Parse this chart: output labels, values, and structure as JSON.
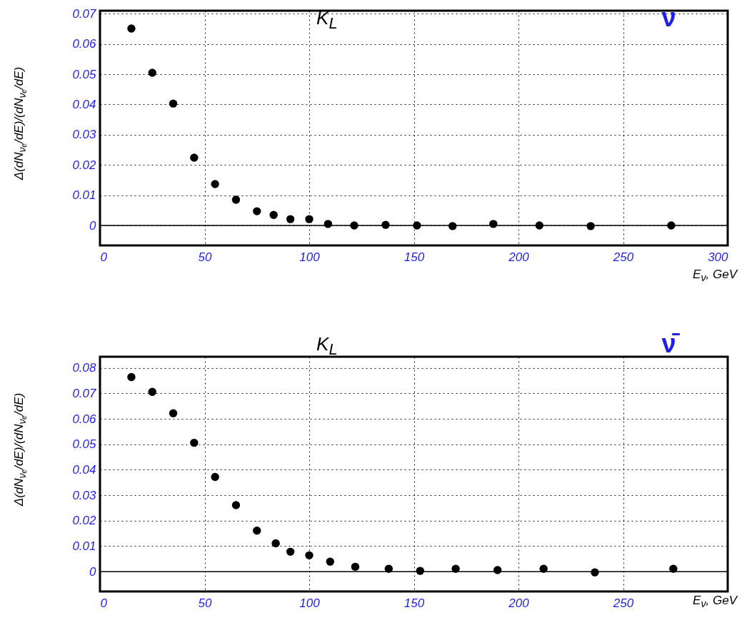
{
  "chart_data": [
    {
      "type": "scatter",
      "xlabel": "E$_{ν}$, GeV",
      "ylabel": "Δ(dN$_{νₑ}$/dE)/(dN$_{νₑ}$/dE)",
      "annotations": [
        "K$_{L}$",
        "ν"
      ],
      "marker": "circle",
      "grid": true,
      "xlim": [
        0,
        300
      ],
      "xticks": [
        0,
        50,
        100,
        150,
        200,
        250,
        300
      ],
      "ylim": [
        -0.0066,
        0.071
      ],
      "yticks": [
        0,
        0.01,
        0.02,
        0.03,
        0.04,
        0.05,
        0.06,
        0.07
      ],
      "ref_lines": [
        {
          "axis": "y",
          "value": 0,
          "color": "#000000"
        }
      ],
      "series": [
        {
          "color": "#000000",
          "x": [
            15,
            25,
            35,
            45,
            55,
            65,
            75,
            83,
            91,
            100,
            109,
            121.5,
            136.5,
            151.5,
            168.5,
            188,
            210,
            234.5,
            273
          ],
          "values": [
            0.0651,
            0.0505,
            0.0403,
            0.0224,
            0.0137,
            0.0085,
            0.0047,
            0.0035,
            0.0021,
            0.0021,
            0.0005,
            0,
            0.0002,
            0,
            -0.0002,
            0.0005,
            0,
            -0.0002,
            0
          ]
        }
      ]
    },
    {
      "type": "scatter",
      "xlabel": "E$_{ν}$, GeV",
      "ylabel": "Δ(dN$_{νₑ}$/dE)/(dN$_{νₑ}$/dE)",
      "annotations": [
        "K$_{L}$",
        "ν̄"
      ],
      "marker": "circle",
      "grid": true,
      "xlim": [
        0,
        300
      ],
      "xticks": [
        0,
        50,
        100,
        150,
        200,
        250
      ],
      "ylim": [
        -0.0078,
        0.0844
      ],
      "yticks": [
        0,
        0.01,
        0.02,
        0.03,
        0.04,
        0.05,
        0.06,
        0.07,
        0.08
      ],
      "ref_lines": [
        {
          "axis": "y",
          "value": 0,
          "color": "#000000"
        }
      ],
      "series": [
        {
          "color": "#000000",
          "x": [
            15,
            25,
            35,
            45,
            55,
            65,
            75,
            84,
            91,
            100,
            110,
            122,
            138,
            153,
            170,
            190,
            212,
            236.5,
            274
          ],
          "values": [
            0.0764,
            0.0706,
            0.0622,
            0.0506,
            0.0372,
            0.0261,
            0.0161,
            0.0111,
            0.0078,
            0.0064,
            0.0039,
            0.0019,
            0.0011,
            0.0003,
            0.0011,
            0.0006,
            0.0011,
            -0.0003,
            0.0011
          ]
        }
      ]
    }
  ]
}
